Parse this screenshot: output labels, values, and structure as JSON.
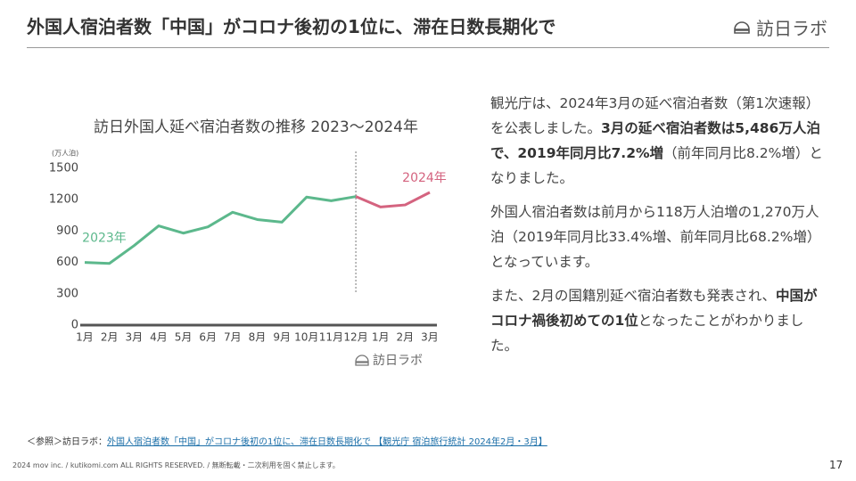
{
  "header": {
    "title": "外国人宿泊者数「中国」がコロナ後初の1位に、滞在日数長期化で",
    "logo": "訪日ラボ"
  },
  "chart_data": {
    "type": "line",
    "title": "訪日外国人延べ宿泊者数の推移 2023〜2024年",
    "y_label": "(万人泊)",
    "categories": [
      "1月",
      "2月",
      "3月",
      "4月",
      "5月",
      "6月",
      "7月",
      "8月",
      "9月",
      "10月",
      "11月",
      "12月",
      "1月",
      "2月",
      "3月"
    ],
    "series": [
      {
        "name": "2023年",
        "color": "#5cb88c",
        "values": [
          600,
          590,
          760,
          950,
          880,
          940,
          1080,
          1010,
          985,
          1225,
          1190,
          1230,
          null,
          null,
          null
        ]
      },
      {
        "name": "2024年",
        "color": "#d4637f",
        "values": [
          null,
          null,
          null,
          null,
          null,
          null,
          null,
          null,
          null,
          null,
          null,
          1230,
          1130,
          1150,
          1270
        ]
      }
    ],
    "ylim": [
      0,
      1500
    ],
    "yticks": [
      0,
      300,
      600,
      900,
      1200,
      1500
    ],
    "grid": false,
    "divider_category": "12月",
    "logo": "訪日ラボ"
  },
  "body": {
    "paragraphs": [
      [
        "観光庁は、2024年3月の延べ宿泊者数（第1次速報）を公表しました。",
        "3月の延べ宿泊者数は5,486万人泊で、2019年同月比7.2%増",
        "（前年同月比8.2%増）となりました。"
      ],
      [
        "外国人宿泊者数は前月から118万人泊増の1,270万人泊（2019年同月比33.4%増、前年同月比68.2%増）となっています。"
      ],
      [
        "また、2月の国籍別延べ宿泊者数も発表され、",
        "中国がコロナ禍後初めての1位",
        "となったことがわかりました。"
      ]
    ]
  },
  "footer": {
    "reference_prefix": "＜参照＞訪日ラボ：",
    "reference_link": "外国人宿泊者数「中国」がコロナ後初の1位に、滞在日数長期化で 【観光庁 宿泊旅行統計 2024年2月・3月】",
    "copyright": "2024 mov inc. / kutikomi.com ALL RIGHTS RESERVED. / 無断転載・二次利用を固く禁止します。",
    "page": "17"
  }
}
